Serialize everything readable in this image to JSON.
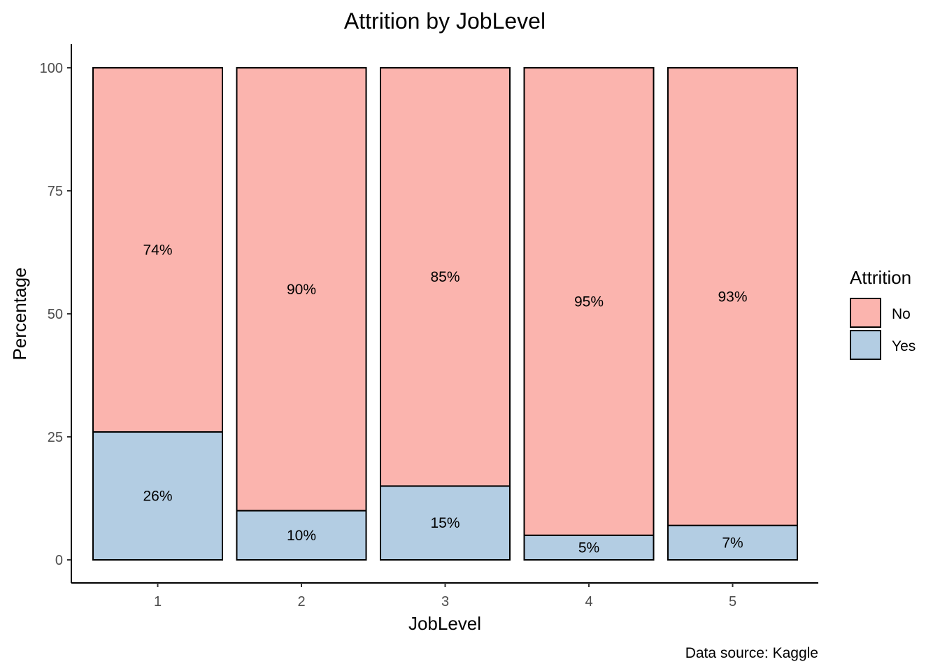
{
  "chart_data": {
    "type": "bar",
    "stacked": true,
    "title": "Attrition by JobLevel",
    "xlabel": "JobLevel",
    "ylabel": "Percentage",
    "categories": [
      "1",
      "2",
      "3",
      "4",
      "5"
    ],
    "ylim": [
      0,
      100
    ],
    "yticks": [
      "0",
      "25",
      "50",
      "75",
      "100"
    ],
    "series": [
      {
        "name": "Yes",
        "values": [
          26,
          10,
          15,
          5,
          7
        ],
        "labels": [
          "26%",
          "10%",
          "15%",
          "5%",
          "7%"
        ],
        "color": "#b3cde3"
      },
      {
        "name": "No",
        "values": [
          74,
          90,
          85,
          95,
          93
        ],
        "labels": [
          "74%",
          "90%",
          "85%",
          "95%",
          "93%"
        ],
        "color": "#fbb4ae"
      }
    ],
    "legend": {
      "title": "Attrition",
      "order": [
        "No",
        "Yes"
      ],
      "placement": "right"
    },
    "grid": false,
    "caption": "Data source: Kaggle"
  }
}
